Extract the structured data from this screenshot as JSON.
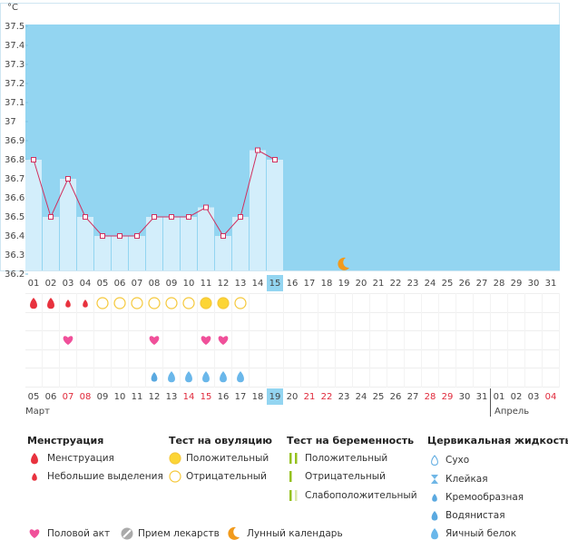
{
  "unit": "°C",
  "ylim": [
    36.2,
    37.5
  ],
  "yticks": [
    37.5,
    37.4,
    37.3,
    37.2,
    37.1,
    37,
    36.9,
    36.8,
    36.7,
    36.6,
    36.5,
    36.4,
    36.3,
    36.2
  ],
  "cycle_days": [
    "01",
    "02",
    "03",
    "04",
    "05",
    "06",
    "07",
    "08",
    "09",
    "10",
    "11",
    "12",
    "13",
    "14",
    "15",
    "16",
    "17",
    "18",
    "19",
    "20",
    "21",
    "22",
    "23",
    "24",
    "25",
    "26",
    "27",
    "28",
    "29",
    "30",
    "31"
  ],
  "temperatures": [
    36.8,
    36.5,
    36.7,
    36.5,
    36.4,
    36.4,
    36.4,
    36.5,
    36.5,
    36.5,
    36.55,
    36.4,
    36.5,
    36.85,
    36.8
  ],
  "menstruation": [
    0,
    0,
    1,
    1,
    null,
    null,
    null,
    null,
    null,
    null,
    null,
    null,
    null,
    null,
    null
  ],
  "ovulation_test": [
    null,
    null,
    null,
    null,
    1,
    1,
    1,
    1,
    1,
    1,
    0,
    0,
    1,
    null,
    null
  ],
  "sex": [
    null,
    null,
    0,
    null,
    null,
    null,
    null,
    0,
    null,
    null,
    0,
    0,
    null,
    null,
    null
  ],
  "cervical_fluid": [
    null,
    null,
    null,
    null,
    null,
    null,
    null,
    3,
    4,
    4,
    4,
    4,
    4,
    null,
    null
  ],
  "moon_index": 18,
  "dates": [
    "05",
    "06",
    "07",
    "08",
    "09",
    "10",
    "11",
    "12",
    "13",
    "14",
    "15",
    "16",
    "17",
    "18",
    "19",
    "20",
    "21",
    "22",
    "23",
    "24",
    "25",
    "26",
    "27",
    "28",
    "29",
    "30",
    "31",
    "01",
    "02",
    "03",
    "04"
  ],
  "weekend": [
    2,
    3,
    9,
    10,
    16,
    17,
    23,
    24,
    30
  ],
  "months": [
    {
      "label": "Март",
      "start": 0
    },
    {
      "label": "Апрель",
      "start": 27
    }
  ],
  "legend": {
    "groups": [
      {
        "title": "Менструация",
        "items": [
          "Менструация",
          "Небольшие выделения"
        ]
      },
      {
        "title": "Тест на овуляцию",
        "items": [
          "Положительный",
          "Отрицательный"
        ]
      },
      {
        "title": "Тест на беременность",
        "items": [
          "Положительный",
          "Отрицательный",
          "Слабоположительный"
        ]
      },
      {
        "title": "Цервикальная жидкость",
        "items": [
          "Сухо",
          "Клейкая",
          "Кремообразная",
          "Водянистая",
          "Яичный белок"
        ]
      }
    ],
    "extra": [
      "Половой акт",
      "Прием лекарств",
      "Лунный календарь"
    ]
  }
}
